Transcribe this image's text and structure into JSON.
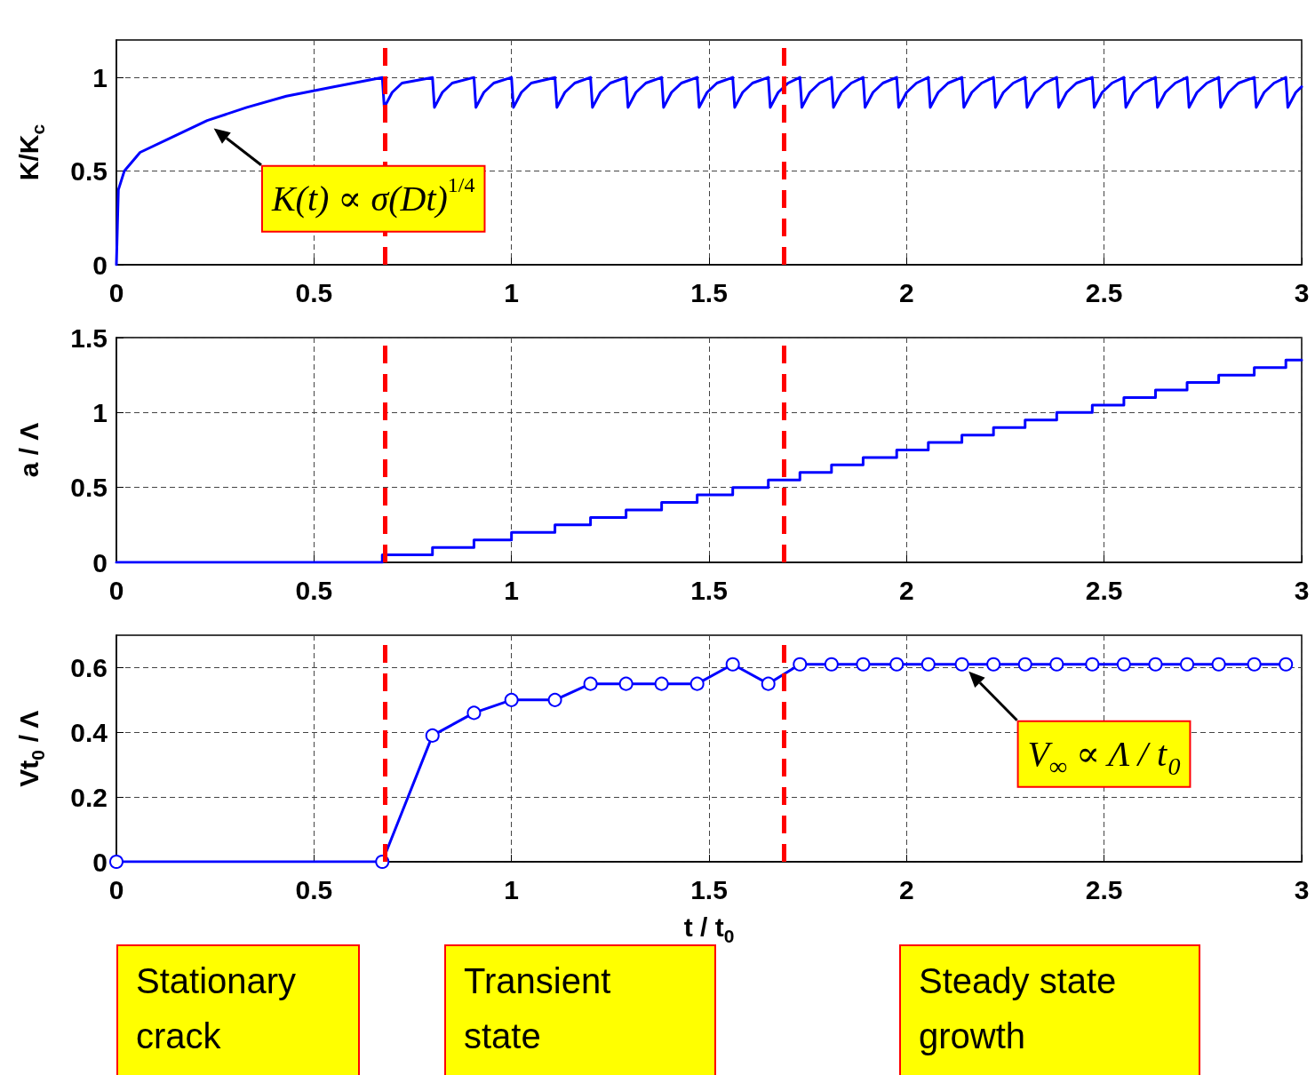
{
  "chart_data": [
    {
      "type": "line",
      "ylabel": "K/K$_{c}$",
      "xlim": [
        0,
        3
      ],
      "ylim": [
        0,
        1.2
      ],
      "xticks": [
        0,
        0.5,
        1,
        1.5,
        2,
        2.5,
        3
      ],
      "yticks": [
        0,
        0.5,
        1
      ],
      "grid": true,
      "marker": "none",
      "line_style": "solid",
      "series": [
        {
          "color": "#0000ff",
          "x": [
            0,
            0.005,
            0.02,
            0.06,
            0.14,
            0.23,
            0.33,
            0.43,
            0.55,
            0.673,
            0.678,
            0.698,
            0.723,
            0.8,
            0.805,
            0.825,
            0.85,
            0.905,
            0.91,
            0.93,
            0.955,
            1.0,
            1.005,
            1.025,
            1.05,
            1.11,
            1.115,
            1.135,
            1.16,
            1.2,
            1.205,
            1.225,
            1.25,
            1.29,
            1.295,
            1.315,
            1.34,
            1.38,
            1.385,
            1.405,
            1.43,
            1.47,
            1.475,
            1.495,
            1.52,
            1.56,
            1.565,
            1.585,
            1.61,
            1.65,
            1.655,
            1.675,
            1.7,
            1.73,
            1.735,
            1.755,
            1.78,
            1.81,
            1.815,
            1.835,
            1.86,
            1.89,
            1.895,
            1.915,
            1.94,
            1.975,
            1.98,
            2.0,
            2.025,
            2.055,
            2.06,
            2.08,
            2.105,
            2.14,
            2.145,
            2.165,
            2.19,
            2.22,
            2.225,
            2.245,
            2.27,
            2.3,
            2.305,
            2.325,
            2.35,
            2.38,
            2.385,
            2.405,
            2.43,
            2.47,
            2.475,
            2.495,
            2.52,
            2.55,
            2.555,
            2.575,
            2.6,
            2.63,
            2.635,
            2.655,
            2.68,
            2.71,
            2.715,
            2.735,
            2.76,
            2.79,
            2.795,
            2.815,
            2.84,
            2.88,
            2.885,
            2.905,
            2.93,
            2.96,
            2.965,
            2.985,
            3.0
          ],
          "values": [
            0,
            0.4,
            0.5,
            0.6,
            0.68,
            0.77,
            0.84,
            0.9,
            0.95,
            1,
            0.84,
            0.92,
            0.97,
            1,
            0.84,
            0.92,
            0.97,
            1,
            0.84,
            0.92,
            0.97,
            1,
            0.84,
            0.92,
            0.97,
            1,
            0.84,
            0.92,
            0.97,
            1,
            0.84,
            0.92,
            0.97,
            1,
            0.84,
            0.92,
            0.97,
            1,
            0.84,
            0.92,
            0.97,
            1,
            0.84,
            0.92,
            0.97,
            1,
            0.84,
            0.92,
            0.97,
            1,
            0.84,
            0.92,
            0.97,
            1,
            0.84,
            0.92,
            0.97,
            1,
            0.84,
            0.92,
            0.97,
            1,
            0.84,
            0.92,
            0.97,
            1,
            0.84,
            0.92,
            0.97,
            1,
            0.84,
            0.92,
            0.97,
            1,
            0.84,
            0.92,
            0.97,
            1,
            0.84,
            0.92,
            0.97,
            1,
            0.84,
            0.92,
            0.97,
            1,
            0.84,
            0.92,
            0.97,
            1,
            0.84,
            0.92,
            0.97,
            1,
            0.84,
            0.92,
            0.97,
            1,
            0.84,
            0.92,
            0.97,
            1,
            0.84,
            0.92,
            0.97,
            1,
            0.84,
            0.92,
            0.97,
            1,
            0.84,
            0.92,
            0.97,
            1,
            0.84,
            0.92,
            0.95
          ]
        }
      ],
      "ref_lines": [
        {
          "axis": "x",
          "value": 0.684,
          "color": "#ff0000",
          "line_style": "dashed"
        },
        {
          "axis": "x",
          "value": 1.691,
          "color": "#ff0000",
          "line_style": "dashed"
        }
      ],
      "annotations": [
        {
          "text": "K(t) ∝ σ(Dt)$^{1/4}$",
          "x": 0.227,
          "y": 0.76
        }
      ]
    },
    {
      "type": "step",
      "ylabel": "a / Λ",
      "xlim": [
        0,
        3
      ],
      "ylim": [
        0,
        1.5
      ],
      "xticks": [
        0,
        0.5,
        1,
        1.5,
        2,
        2.5,
        3
      ],
      "yticks": [
        0,
        0.5,
        1,
        1.5
      ],
      "grid": true,
      "marker": "none",
      "line_style": "solid",
      "series": [
        {
          "color": "#0000ff",
          "x": [
            0,
            0.673,
            0.8,
            0.905,
            1.0,
            1.11,
            1.2,
            1.29,
            1.38,
            1.47,
            1.56,
            1.65,
            1.73,
            1.81,
            1.89,
            1.975,
            2.055,
            2.14,
            2.22,
            2.3,
            2.38,
            2.47,
            2.55,
            2.63,
            2.71,
            2.79,
            2.88,
            2.96,
            3.0
          ],
          "values": [
            0,
            0.05,
            0.1,
            0.15,
            0.2,
            0.25,
            0.3,
            0.35,
            0.4,
            0.45,
            0.5,
            0.55,
            0.6,
            0.65,
            0.7,
            0.75,
            0.8,
            0.85,
            0.9,
            0.95,
            1.0,
            1.05,
            1.1,
            1.15,
            1.2,
            1.25,
            1.3,
            1.35,
            1.35
          ]
        }
      ],
      "ref_lines": [
        {
          "axis": "x",
          "value": 0.684,
          "color": "#ff0000",
          "line_style": "dashed"
        },
        {
          "axis": "x",
          "value": 1.691,
          "color": "#ff0000",
          "line_style": "dashed"
        }
      ]
    },
    {
      "type": "line",
      "xlabel": "t / t$_{0}$",
      "ylabel": "Vt$_{0}$ / Λ",
      "xlim": [
        0,
        3
      ],
      "ylim": [
        0,
        0.7
      ],
      "xticks": [
        0,
        0.5,
        1,
        1.5,
        2,
        2.5,
        3
      ],
      "yticks": [
        0,
        0.2,
        0.4,
        0.6
      ],
      "grid": true,
      "marker": "circle",
      "line_style": "solid",
      "series": [
        {
          "color": "#0000ff",
          "x": [
            0,
            0.673,
            0.8,
            0.905,
            1.0,
            1.11,
            1.2,
            1.29,
            1.38,
            1.47,
            1.56,
            1.65,
            1.73,
            1.81,
            1.89,
            1.975,
            2.055,
            2.14,
            2.22,
            2.3,
            2.38,
            2.47,
            2.55,
            2.63,
            2.71,
            2.79,
            2.88,
            2.96
          ],
          "values": [
            0,
            0,
            0.39,
            0.46,
            0.5,
            0.5,
            0.55,
            0.55,
            0.55,
            0.55,
            0.61,
            0.55,
            0.61,
            0.61,
            0.61,
            0.61,
            0.61,
            0.61,
            0.61,
            0.61,
            0.61,
            0.61,
            0.61,
            0.61,
            0.61,
            0.61,
            0.61,
            0.61
          ]
        }
      ],
      "ref_lines": [
        {
          "axis": "x",
          "value": 0.684,
          "color": "#ff0000",
          "line_style": "dashed"
        },
        {
          "axis": "x",
          "value": 1.691,
          "color": "#ff0000",
          "line_style": "dashed"
        }
      ],
      "annotations": [
        {
          "text": "V$_{∞}$ ∝ Λ / t$_{0}$",
          "x": 2.14,
          "y": 0.61
        },
        "Stationary crack",
        "Transient state",
        "Steady state growth"
      ]
    }
  ]
}
